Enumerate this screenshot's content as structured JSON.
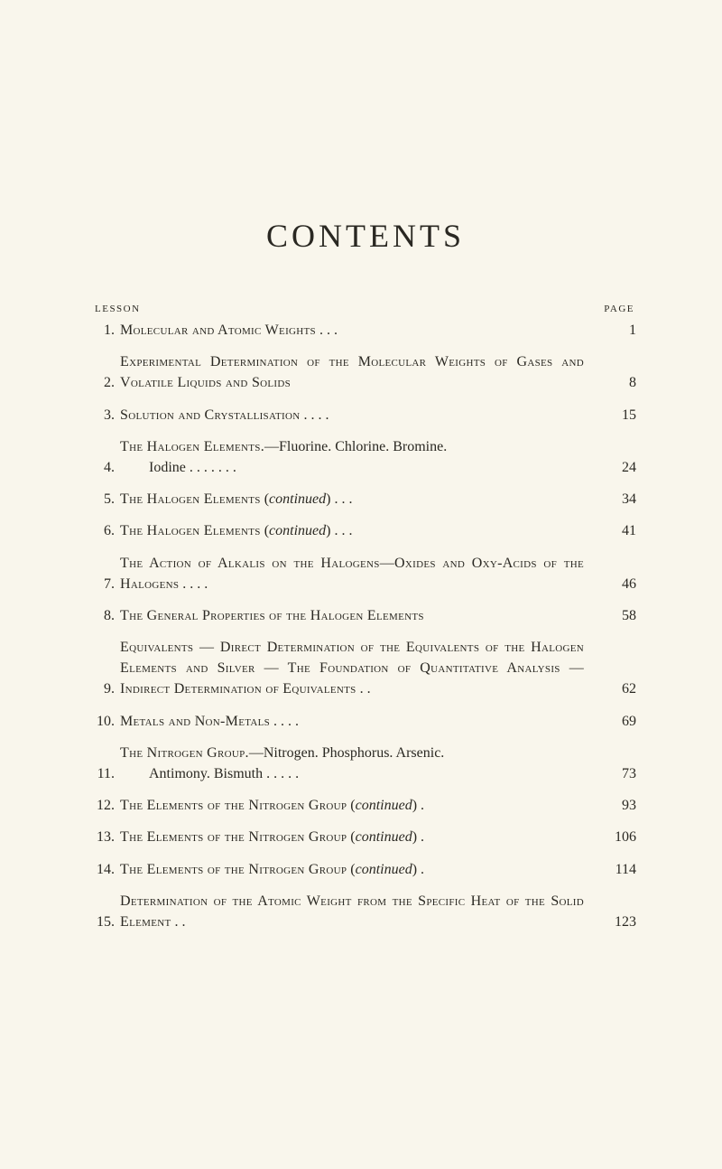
{
  "title": "CONTENTS",
  "header": {
    "left": "LESSON",
    "right": "PAGE"
  },
  "entries": [
    {
      "num": "1.",
      "text_sc": "Molecular and Atomic Weights",
      "text_tail": " . . .",
      "page": "1"
    },
    {
      "num": "2.",
      "text_sc": "Experimental Determination of the Molecular Weights of Gases and Volatile Liquids and Solids",
      "text_tail": "",
      "page": "8"
    },
    {
      "num": "3.",
      "text_sc": "Solution and Crystallisation",
      "text_tail": " . . . .",
      "page": "15"
    },
    {
      "num": "4.",
      "text_sc": "The Halogen Elements.",
      "text_tail": "—Fluorine. Chlorine. Bromine.",
      "cont_line": "Iodine . . . . . . .",
      "page": "24"
    },
    {
      "num": "5.",
      "text_sc": "The Halogen Elements",
      "text_tail": " (continued) . . .",
      "page": "34"
    },
    {
      "num": "6.",
      "text_sc": "The Halogen Elements",
      "text_tail": " (continued) . . .",
      "page": "41"
    },
    {
      "num": "7.",
      "text_sc": "The Action of Alkalis on the Halogens—Oxides and Oxy-Acids of the Halogens",
      "text_tail": " . . . .",
      "page": "46"
    },
    {
      "num": "8.",
      "text_sc": "The General Properties of the Halogen Elements",
      "text_tail": "",
      "page": "58"
    },
    {
      "num": "9.",
      "text_sc": "Equivalents — Direct Determination of the Equivalents of the Halogen Elements and Silver — The Foundation of Quantitative Analysis — Indirect Determination of Equivalents",
      "text_tail": " . .",
      "page": "62"
    },
    {
      "num": "10.",
      "text_sc": "Metals and Non-Metals",
      "text_tail": " . . . .",
      "page": "69"
    },
    {
      "num": "11.",
      "text_sc": "The Nitrogen Group.",
      "text_tail": "—Nitrogen. Phosphorus. Arsenic.",
      "cont_line": "Antimony. Bismuth . . . . .",
      "page": "73"
    },
    {
      "num": "12.",
      "text_sc": "The Elements of the Nitrogen Group",
      "text_tail": " (continued) .",
      "page": "93"
    },
    {
      "num": "13.",
      "text_sc": "The Elements of the Nitrogen Group",
      "text_tail": " (continued) .",
      "page": "106"
    },
    {
      "num": "14.",
      "text_sc": "The Elements of the Nitrogen Group",
      "text_tail": " (continued) .",
      "page": "114"
    },
    {
      "num": "15.",
      "text_sc": "Determination of the Atomic Weight from the Specific Heat of the Solid Element",
      "text_tail": " . .",
      "page": "123"
    }
  ],
  "colors": {
    "background": "#f9f6ec",
    "text": "#2a2822"
  }
}
